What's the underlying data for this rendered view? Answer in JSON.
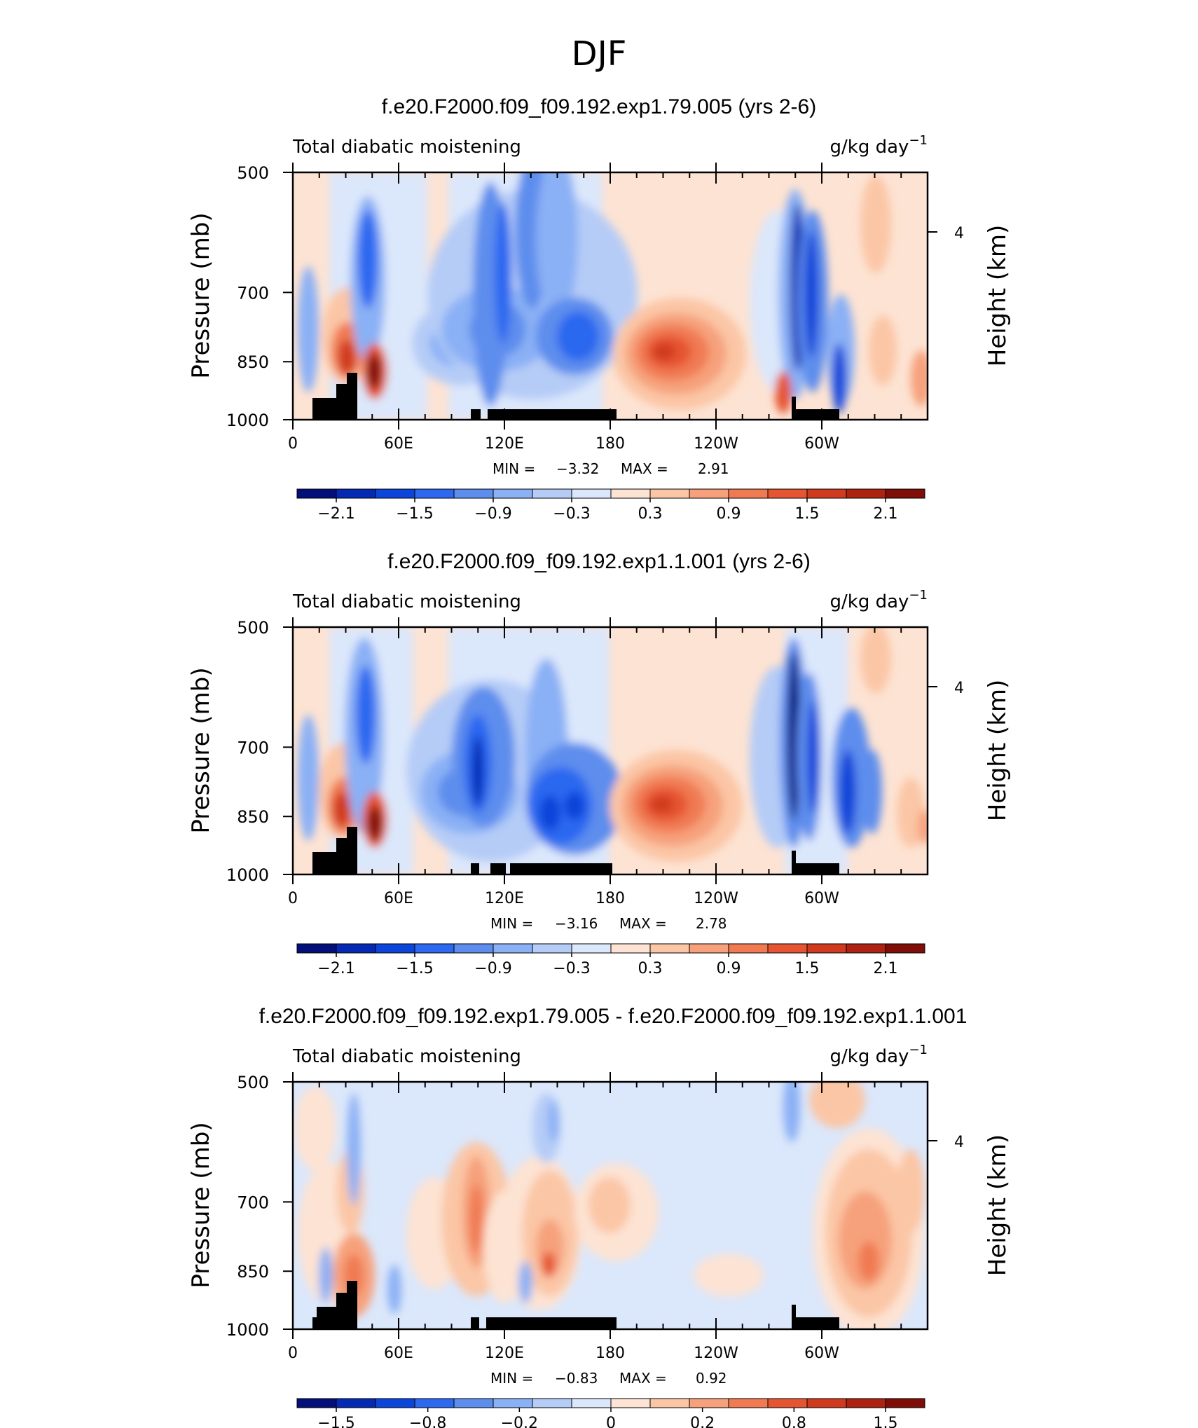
{
  "page_title": "DJF",
  "chart_data": [
    {
      "type": "contour",
      "title": "f.e20.F2000.f09_f09.192.exp1.79.005 (yrs 2-6)",
      "left_label": "Total diabatic moistening",
      "units_main": "g/kg day",
      "units_exp": "−1",
      "ylabel": "Pressure (mb)",
      "ylabel_right": "Height (km)",
      "yticks": [
        "500",
        "700",
        "850",
        "1000"
      ],
      "ytick_values": [
        500,
        700,
        850,
        1000
      ],
      "yticks_right": [
        "4"
      ],
      "xticks": [
        "0",
        "60E",
        "120E",
        "180",
        "120W",
        "60W"
      ],
      "xtick_values": [
        0,
        60,
        120,
        180,
        240,
        300
      ],
      "xlim": [
        0,
        360
      ],
      "ylim": [
        500,
        1000
      ],
      "min_label": "MIN =",
      "min_value": "−3.32",
      "max_label": "MAX =",
      "max_value": "2.91",
      "colorbar_ticks": [
        "−2.1",
        "−1.5",
        "−0.9",
        "−0.3",
        "0.3",
        "0.9",
        "1.5",
        "2.1"
      ],
      "colorbar_colors": [
        "#03107a",
        "#0629b3",
        "#0c45d9",
        "#2c68f0",
        "#5d8ded",
        "#8ab0f5",
        "#b5ccf7",
        "#dbe7fb",
        "#fde3d3",
        "#fbc6a6",
        "#f6a17c",
        "#f07a52",
        "#e65532",
        "#d03a1e",
        "#ad2210",
        "#7e0e07"
      ]
    },
    {
      "type": "contour",
      "title": "f.e20.F2000.f09_f09.192.exp1.1.001 (yrs 2-6)",
      "left_label": "Total diabatic moistening",
      "units_main": "g/kg day",
      "units_exp": "−1",
      "ylabel": "Pressure (mb)",
      "ylabel_right": "Height (km)",
      "yticks": [
        "500",
        "700",
        "850",
        "1000"
      ],
      "ytick_values": [
        500,
        700,
        850,
        1000
      ],
      "yticks_right": [
        "4"
      ],
      "xticks": [
        "0",
        "60E",
        "120E",
        "180",
        "120W",
        "60W"
      ],
      "xtick_values": [
        0,
        60,
        120,
        180,
        240,
        300
      ],
      "xlim": [
        0,
        360
      ],
      "ylim": [
        500,
        1000
      ],
      "min_label": "MIN =",
      "min_value": "−3.16",
      "max_label": "MAX =",
      "max_value": "2.78",
      "colorbar_ticks": [
        "−2.1",
        "−1.5",
        "−0.9",
        "−0.3",
        "0.3",
        "0.9",
        "1.5",
        "2.1"
      ],
      "colorbar_colors": [
        "#03107a",
        "#0629b3",
        "#0c45d9",
        "#2c68f0",
        "#5d8ded",
        "#8ab0f5",
        "#b5ccf7",
        "#dbe7fb",
        "#fde3d3",
        "#fbc6a6",
        "#f6a17c",
        "#f07a52",
        "#e65532",
        "#d03a1e",
        "#ad2210",
        "#7e0e07"
      ]
    },
    {
      "type": "contour",
      "title": "f.e20.F2000.f09_f09.192.exp1.79.005 - f.e20.F2000.f09_f09.192.exp1.1.001",
      "left_label": "Total diabatic moistening",
      "units_main": "g/kg day",
      "units_exp": "−1",
      "ylabel": "Pressure (mb)",
      "ylabel_right": "Height (km)",
      "yticks": [
        "500",
        "700",
        "850",
        "1000"
      ],
      "ytick_values": [
        500,
        700,
        850,
        1000
      ],
      "yticks_right": [
        "4"
      ],
      "xticks": [
        "0",
        "60E",
        "120E",
        "180",
        "120W",
        "60W"
      ],
      "xtick_values": [
        0,
        60,
        120,
        180,
        240,
        300
      ],
      "xlim": [
        0,
        360
      ],
      "ylim": [
        500,
        1000
      ],
      "min_label": "MIN =",
      "min_value": "−0.83",
      "max_label": "MAX =",
      "max_value": "0.92",
      "colorbar_ticks": [
        "−1.5",
        "−0.8",
        "−0.2",
        "0",
        "0.2",
        "0.8",
        "1.5"
      ],
      "colorbar_colors": [
        "#03107a",
        "#0629b3",
        "#0c45d9",
        "#2c68f0",
        "#5d8ded",
        "#8ab0f5",
        "#b5ccf7",
        "#dbe7fb",
        "#fde3d3",
        "#fbc6a6",
        "#f6a17c",
        "#f07a52",
        "#e65532",
        "#d03a1e",
        "#ad2210",
        "#7e0e07"
      ]
    }
  ]
}
